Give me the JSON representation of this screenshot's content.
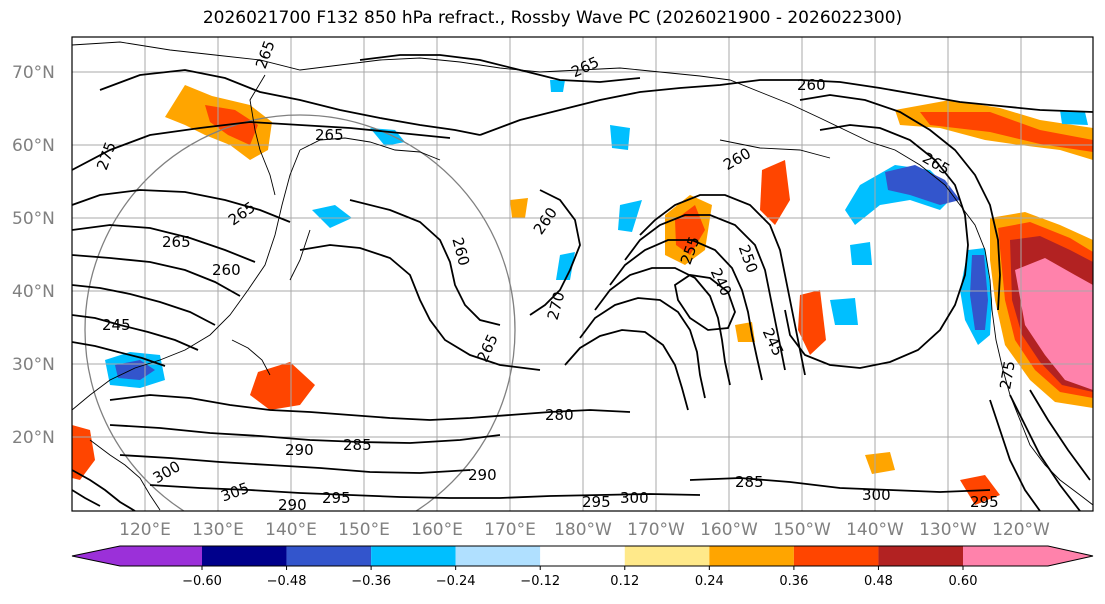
{
  "title": "2026021700 F132 850 hPa refract., Rossby Wave PC (2026021900 - 2026022300)",
  "lat_labels": [
    "70°N",
    "60°N",
    "50°N",
    "40°N",
    "30°N",
    "20°N"
  ],
  "lon_labels": [
    "120°E",
    "130°E",
    "140°E",
    "150°E",
    "160°E",
    "170°E",
    "180°W",
    "170°W",
    "160°W",
    "150°W",
    "140°W",
    "130°W",
    "120°W"
  ],
  "contour_labels": [
    "265",
    "275",
    "265",
    "265",
    "260",
    "260",
    "260",
    "265",
    "265",
    "260",
    "245",
    "270",
    "265",
    "280",
    "285",
    "290",
    "290",
    "300",
    "305",
    "290",
    "295",
    "295",
    "300",
    "285",
    "300",
    "255",
    "250",
    "240",
    "245",
    "260",
    "265",
    "275",
    "295"
  ],
  "colorbar": {
    "ticks": [
      "−0.60",
      "−0.48",
      "−0.36",
      "−0.24",
      "−0.12",
      "0.12",
      "0.24",
      "0.36",
      "0.48",
      "0.60"
    ],
    "colors": [
      "#9b30d9",
      "#00008b",
      "#3355cc",
      "#00bfff",
      "#b0e0ff",
      "#ffffff",
      "#ffe98a",
      "#ffa500",
      "#ff4500",
      "#b22222",
      "#ff82ab"
    ]
  }
}
